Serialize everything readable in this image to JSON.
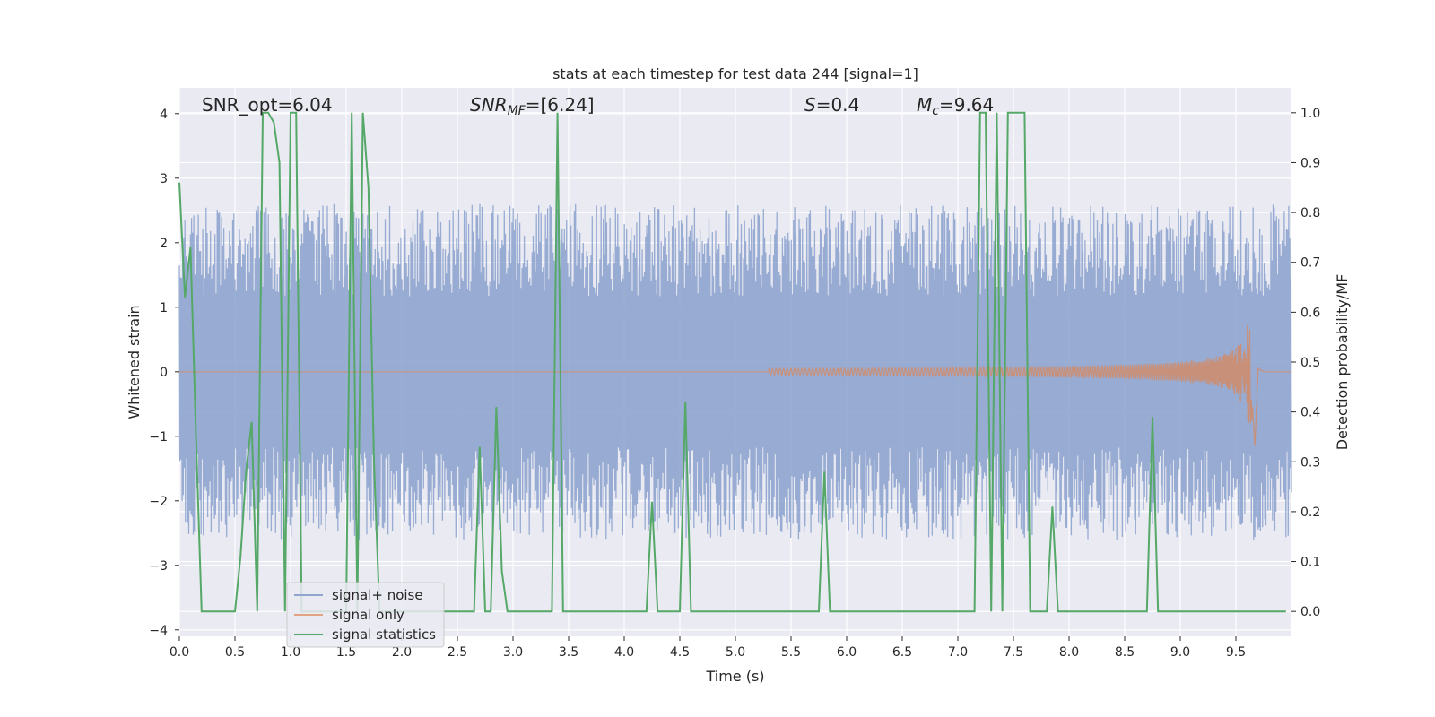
{
  "chart_data": {
    "type": "line",
    "title": "stats at each timestep for test data 244 [signal=1]",
    "xlabel": "Time (s)",
    "ylabel_left": "Whitened strain",
    "ylabel_right": "Detection probability/MF",
    "xlim": [
      0.0,
      10.0
    ],
    "ylim_left": [
      -4.1,
      4.4
    ],
    "ylim_right": [
      -0.05,
      1.05
    ],
    "x_ticks": [
      "0.0",
      "0.5",
      "1.0",
      "1.5",
      "2.0",
      "2.5",
      "3.0",
      "3.5",
      "4.0",
      "4.5",
      "5.0",
      "5.5",
      "6.0",
      "6.5",
      "7.0",
      "7.5",
      "8.0",
      "8.5",
      "9.0",
      "9.5"
    ],
    "y_ticks_left": [
      "−4",
      "−3",
      "−2",
      "−1",
      "0",
      "1",
      "2",
      "3",
      "4"
    ],
    "y_ticks_right": [
      "0.0",
      "0.1",
      "0.2",
      "0.3",
      "0.4",
      "0.5",
      "0.6",
      "0.7",
      "0.8",
      "0.9",
      "1.0"
    ],
    "grid": true,
    "legend_position": "bottom-left",
    "annotations": {
      "snr_opt": "SNR_opt=6.04",
      "snr_mf_base": "SNR",
      "snr_mf_sub": "MF",
      "snr_mf_value": "=[6.24]",
      "s_symbol": "S",
      "s_value": "=0.4",
      "mc_base": "M",
      "mc_sub": "c",
      "mc_value": "=9.64"
    },
    "series": [
      {
        "name": "signal+ noise",
        "color": "#8fa5cf",
        "style": "noise",
        "amplitude_envelope": 2.6
      },
      {
        "name": "signal only",
        "color": "#dd8452",
        "style": "chirp",
        "x_start": 5.3,
        "x_merger": 9.65,
        "peak": 0.8
      },
      {
        "name": "signal statistics",
        "color": "#55a868",
        "x": [
          0.0,
          0.05,
          0.1,
          0.15,
          0.2,
          0.5,
          0.55,
          0.6,
          0.65,
          0.7,
          0.75,
          0.8,
          0.85,
          0.9,
          0.95,
          1.0,
          1.05,
          1.1,
          1.15,
          1.2,
          1.5,
          1.55,
          1.6,
          1.65,
          1.7,
          1.75,
          1.8,
          2.65,
          2.7,
          2.75,
          2.8,
          2.85,
          2.9,
          2.95,
          3.0,
          3.35,
          3.4,
          3.45,
          3.5,
          4.2,
          4.25,
          4.3,
          4.5,
          4.55,
          4.6,
          5.75,
          5.8,
          5.85,
          6.0,
          6.15,
          6.2,
          7.0,
          7.05,
          7.1,
          7.15,
          7.2,
          7.25,
          7.3,
          7.35,
          7.4,
          7.45,
          7.5,
          7.55,
          7.6,
          7.65,
          7.7,
          7.8,
          7.85,
          7.9,
          8.0,
          8.7,
          8.75,
          8.8,
          9.6,
          9.65,
          9.7,
          9.95
        ],
        "y": [
          0.86,
          0.63,
          0.73,
          0.35,
          0.0,
          0.0,
          0.11,
          0.28,
          0.38,
          0.0,
          1.0,
          1.0,
          0.98,
          0.9,
          0.0,
          1.0,
          1.0,
          0.0,
          0.0,
          0.0,
          0.0,
          1.0,
          0.0,
          1.0,
          0.85,
          0.3,
          0.0,
          0.0,
          0.33,
          0.0,
          0.0,
          0.41,
          0.08,
          0.0,
          0.0,
          0.0,
          1.0,
          0.0,
          0.0,
          0.0,
          0.22,
          0.0,
          0.0,
          0.42,
          0.0,
          0.0,
          0.28,
          0.0,
          0.0,
          0.0,
          0.0,
          0.0,
          0.0,
          0.0,
          0.0,
          1.0,
          1.0,
          0.0,
          1.0,
          0.0,
          1.0,
          1.0,
          1.0,
          1.0,
          0.0,
          0.0,
          0.0,
          0.21,
          0.0,
          0.0,
          0.0,
          0.39,
          0.0,
          0.0,
          0.0,
          0.0,
          0.0
        ]
      }
    ]
  }
}
